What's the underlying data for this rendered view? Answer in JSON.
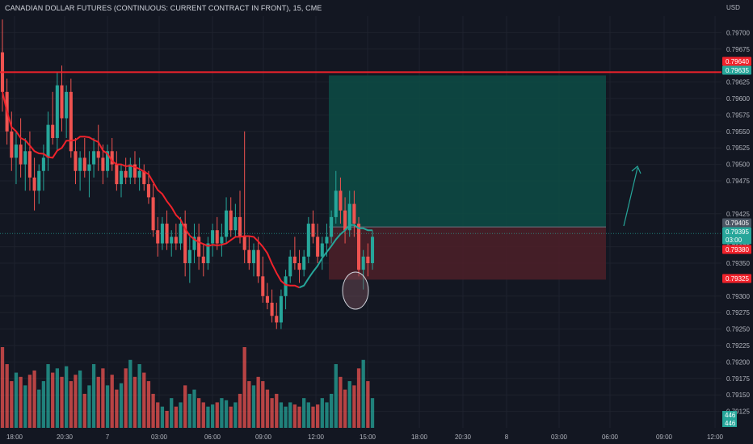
{
  "header": {
    "title": "CANADIAN DOLLAR FUTURES (CONTINUOUS: CURRENT CONTRACT IN FRONT), 15, CME",
    "currency": "USD"
  },
  "colors": {
    "background": "#131722",
    "up": "#26a69a",
    "down": "#ef5350",
    "ma_line": "#f0222b",
    "ma_line_recent": "#26a69a",
    "grid": "#1e222d",
    "target_zone": "#0d4c45",
    "stop_zone": "#4a1f28",
    "resistance_line": "#f0222b"
  },
  "chart_data": {
    "type": "candlestick",
    "timeframe": "15",
    "exchange": "CME",
    "y_ticks": [
      "0.79700",
      "0.79675",
      "0.79625",
      "0.79600",
      "0.79575",
      "0.79550",
      "0.79525",
      "0.79500",
      "0.79475",
      "0.79425",
      "0.79375",
      "0.79350",
      "0.79300",
      "0.79275",
      "0.79250",
      "0.79225",
      "0.79200",
      "0.79175",
      "0.79150",
      "0.79125"
    ],
    "ylim": [
      0.791,
      0.79725
    ],
    "x_ticks": [
      "18:00",
      "20:30",
      "7",
      "03:00",
      "06:00",
      "09:00",
      "12:00",
      "15:00",
      "18:00",
      "20:30",
      "8",
      "03:00",
      "06:00",
      "09:00",
      "12:00"
    ],
    "price_tags": [
      {
        "label": "0.79640",
        "price": 0.7964,
        "color": "#f0222b"
      },
      {
        "label": "0.79635",
        "price": 0.79635,
        "color": "#26a69a"
      },
      {
        "label": "0.79405",
        "price": 0.79405,
        "color": "#4b5563"
      },
      {
        "label": "0.79395",
        "price": 0.79395,
        "color": "#26a69a"
      },
      {
        "label": "03:00",
        "price": 0.79382,
        "color": "#26a69a"
      },
      {
        "label": "0.79380",
        "price": 0.7938,
        "color": "#f0222b"
      },
      {
        "label": "0.79325",
        "price": 0.79325,
        "color": "#f0222b"
      }
    ],
    "volume_tags": [
      "446",
      "446"
    ],
    "resistance_level": 0.7964,
    "long_position": {
      "entry": 0.79405,
      "target": 0.79635,
      "stop": 0.79325
    },
    "current_price": 0.79395,
    "candles": [
      [
        0.7967,
        0.7972,
        0.7958,
        0.7961
      ],
      [
        0.7961,
        0.7963,
        0.7953,
        0.7955
      ],
      [
        0.7955,
        0.7958,
        0.7949,
        0.7951
      ],
      [
        0.7951,
        0.7955,
        0.7947,
        0.7953
      ],
      [
        0.7953,
        0.7957,
        0.7948,
        0.795
      ],
      [
        0.795,
        0.7954,
        0.7946,
        0.7952
      ],
      [
        0.7952,
        0.7955,
        0.7946,
        0.7948
      ],
      [
        0.7948,
        0.7951,
        0.7943,
        0.7946
      ],
      [
        0.7946,
        0.795,
        0.7944,
        0.7949
      ],
      [
        0.7949,
        0.7953,
        0.7946,
        0.7951
      ],
      [
        0.7951,
        0.7958,
        0.7949,
        0.7956
      ],
      [
        0.7956,
        0.7961,
        0.7953,
        0.7954
      ],
      [
        0.7954,
        0.7964,
        0.7952,
        0.7962
      ],
      [
        0.7962,
        0.7965,
        0.7955,
        0.7957
      ],
      [
        0.7957,
        0.7962,
        0.7954,
        0.7961
      ],
      [
        0.7961,
        0.7963,
        0.7951,
        0.7952
      ],
      [
        0.7952,
        0.7954,
        0.7947,
        0.7949
      ],
      [
        0.7949,
        0.7952,
        0.7946,
        0.7951
      ],
      [
        0.7951,
        0.7954,
        0.7948,
        0.7949
      ],
      [
        0.7949,
        0.7952,
        0.7945,
        0.795
      ],
      [
        0.795,
        0.7954,
        0.7948,
        0.7952
      ],
      [
        0.7952,
        0.7956,
        0.7949,
        0.7951
      ],
      [
        0.7951,
        0.7953,
        0.7947,
        0.7949
      ],
      [
        0.7949,
        0.7953,
        0.7948,
        0.7952
      ],
      [
        0.7952,
        0.7954,
        0.7949,
        0.795
      ],
      [
        0.795,
        0.7952,
        0.7946,
        0.7947
      ],
      [
        0.7947,
        0.795,
        0.7945,
        0.7949
      ],
      [
        0.7949,
        0.7951,
        0.7947,
        0.7948
      ],
      [
        0.7948,
        0.7951,
        0.7947,
        0.795
      ],
      [
        0.795,
        0.7952,
        0.7947,
        0.7948
      ],
      [
        0.7948,
        0.7951,
        0.7946,
        0.7949
      ],
      [
        0.7949,
        0.795,
        0.7946,
        0.7947
      ],
      [
        0.7947,
        0.7949,
        0.7944,
        0.7945
      ],
      [
        0.7945,
        0.7947,
        0.7939,
        0.794
      ],
      [
        0.794,
        0.7942,
        0.7936,
        0.7938
      ],
      [
        0.7938,
        0.7942,
        0.7937,
        0.7941
      ],
      [
        0.7941,
        0.7943,
        0.7937,
        0.7938
      ],
      [
        0.7938,
        0.794,
        0.7936,
        0.7939
      ],
      [
        0.7939,
        0.7941,
        0.7937,
        0.7938
      ],
      [
        0.7938,
        0.7942,
        0.7937,
        0.7941
      ],
      [
        0.7941,
        0.7943,
        0.7933,
        0.7935
      ],
      [
        0.7935,
        0.7939,
        0.7932,
        0.7937
      ],
      [
        0.7937,
        0.7941,
        0.7935,
        0.7939
      ],
      [
        0.7939,
        0.7941,
        0.7934,
        0.7936
      ],
      [
        0.7936,
        0.7938,
        0.7933,
        0.7935
      ],
      [
        0.7935,
        0.7939,
        0.7934,
        0.7938
      ],
      [
        0.7938,
        0.7941,
        0.7936,
        0.794
      ],
      [
        0.794,
        0.7942,
        0.7937,
        0.7938
      ],
      [
        0.7938,
        0.7941,
        0.7936,
        0.7939
      ],
      [
        0.7939,
        0.7945,
        0.7938,
        0.7943
      ],
      [
        0.7943,
        0.7945,
        0.7939,
        0.794
      ],
      [
        0.794,
        0.7944,
        0.7939,
        0.7942
      ],
      [
        0.7942,
        0.7946,
        0.7938,
        0.7939
      ],
      [
        0.7939,
        0.7955,
        0.7935,
        0.7937
      ],
      [
        0.7937,
        0.7939,
        0.7934,
        0.7935
      ],
      [
        0.7935,
        0.7938,
        0.7933,
        0.7937
      ],
      [
        0.7937,
        0.7939,
        0.7932,
        0.7933
      ],
      [
        0.7933,
        0.7936,
        0.7929,
        0.793
      ],
      [
        0.793,
        0.7932,
        0.7928,
        0.7929
      ],
      [
        0.7929,
        0.7931,
        0.7926,
        0.7927
      ],
      [
        0.7927,
        0.7929,
        0.7925,
        0.7926
      ],
      [
        0.7926,
        0.7931,
        0.7925,
        0.793
      ],
      [
        0.793,
        0.7934,
        0.7928,
        0.7933
      ],
      [
        0.7933,
        0.7937,
        0.7932,
        0.7936
      ],
      [
        0.7936,
        0.7939,
        0.7934,
        0.7935
      ],
      [
        0.7935,
        0.7937,
        0.7932,
        0.7934
      ],
      [
        0.7934,
        0.7937,
        0.7933,
        0.7936
      ],
      [
        0.7936,
        0.7942,
        0.7935,
        0.7941
      ],
      [
        0.7941,
        0.7943,
        0.7938,
        0.7939
      ],
      [
        0.7939,
        0.7941,
        0.7935,
        0.7936
      ],
      [
        0.7936,
        0.7939,
        0.7934,
        0.7938
      ],
      [
        0.7938,
        0.7941,
        0.7936,
        0.7939
      ],
      [
        0.7939,
        0.7943,
        0.7938,
        0.7942
      ],
      [
        0.7942,
        0.7949,
        0.7941,
        0.7946
      ],
      [
        0.7946,
        0.7948,
        0.7941,
        0.7943
      ],
      [
        0.7943,
        0.7945,
        0.7938,
        0.794
      ],
      [
        0.794,
        0.7946,
        0.7939,
        0.7944
      ],
      [
        0.7944,
        0.7946,
        0.7939,
        0.7941
      ],
      [
        0.7941,
        0.7942,
        0.7933,
        0.7934
      ],
      [
        0.7934,
        0.7937,
        0.7931,
        0.7936
      ],
      [
        0.7936,
        0.7938,
        0.7933,
        0.7935
      ],
      [
        0.7935,
        0.794,
        0.7934,
        0.7939
      ]
    ],
    "volumes": [
      38,
      30,
      22,
      26,
      24,
      20,
      25,
      27,
      18,
      22,
      30,
      26,
      28,
      24,
      29,
      22,
      25,
      27,
      16,
      20,
      30,
      24,
      28,
      20,
      25,
      18,
      21,
      28,
      32,
      24,
      30,
      26,
      22,
      16,
      12,
      10,
      8,
      14,
      10,
      12,
      20,
      16,
      18,
      14,
      12,
      10,
      11,
      12,
      14,
      13,
      10,
      12,
      16,
      38,
      22,
      20,
      24,
      22,
      18,
      14,
      16,
      12,
      10,
      12,
      11,
      10,
      14,
      12,
      10,
      11,
      14,
      12,
      16,
      30,
      24,
      18,
      22,
      20,
      28,
      32,
      22,
      14
    ]
  }
}
